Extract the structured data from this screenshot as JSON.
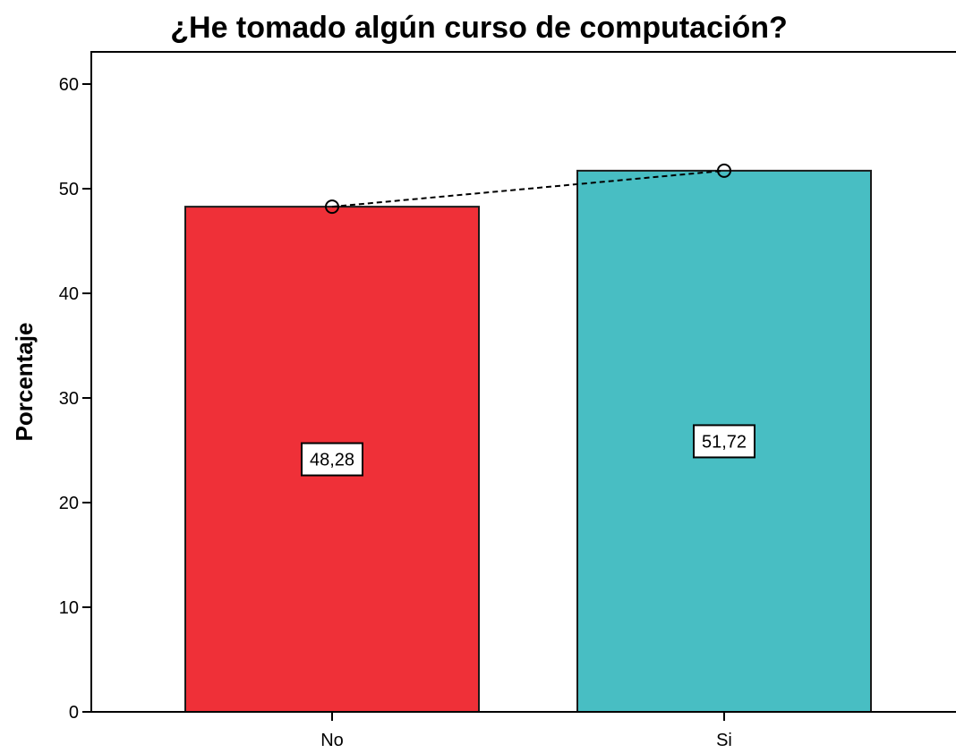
{
  "chart_data": {
    "type": "bar",
    "title": "¿He tomado algún curso de computación?",
    "xlabel": "",
    "ylabel": "Porcentaje",
    "categories": [
      "No",
      "Si"
    ],
    "values": [
      48.28,
      51.72
    ],
    "data_labels": [
      "48,28",
      "51,72"
    ],
    "ylim": [
      0,
      63
    ],
    "yticks": [
      0,
      10,
      20,
      30,
      40,
      50,
      60
    ],
    "ytick_labels": [
      "0",
      "10",
      "20",
      "30",
      "40",
      "50",
      "60"
    ],
    "colors": [
      "#ef3038",
      "#48bec3"
    ],
    "overlay": {
      "type": "line",
      "style": "dashed",
      "marker": "open-circle",
      "values": [
        48.28,
        51.72
      ]
    },
    "grid": false,
    "legend": "none"
  }
}
